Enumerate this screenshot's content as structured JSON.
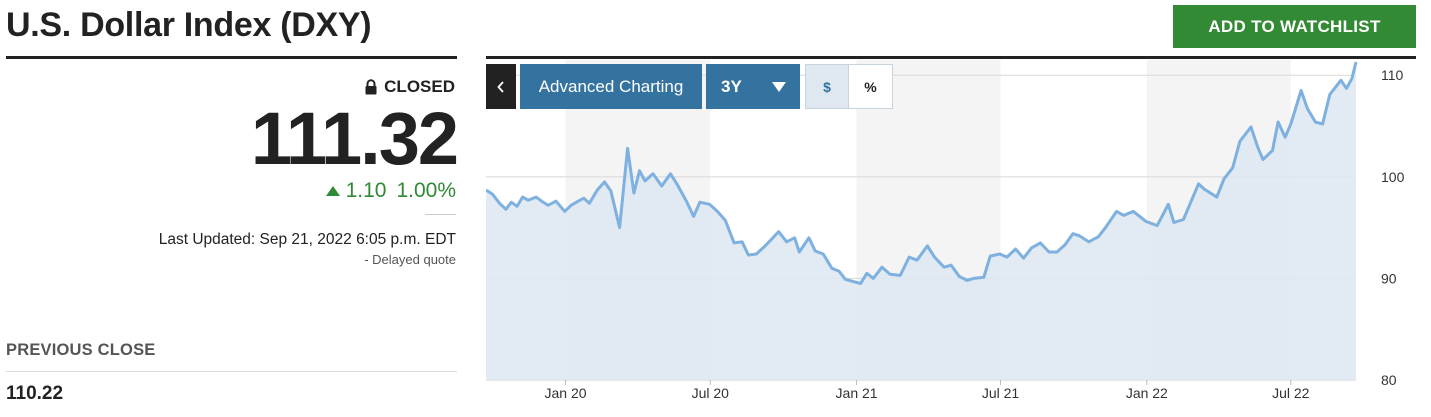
{
  "header": {
    "title": "U.S. Dollar Index (DXY)",
    "watchlist_label": "ADD TO WATCHLIST"
  },
  "quote": {
    "status": "CLOSED",
    "price": "111.32",
    "change": "1.10",
    "change_pct": "1.00%",
    "last_updated": "Last Updated: Sep 21, 2022 6:05 p.m. EDT",
    "delayed": "-  Delayed quote",
    "previous_close_label": "PREVIOUS CLOSE",
    "previous_close_value": "110.22"
  },
  "toolbar": {
    "back_label": "‹",
    "advanced_label": "Advanced Charting",
    "range_label": "3Y",
    "dollar_label": "$",
    "percent_label": "%"
  },
  "colors": {
    "accent_green": "#338a35",
    "toolbar_blue": "#34729f",
    "line": "#7eb0e0",
    "area": "#dde8f1"
  },
  "chart_data": {
    "type": "area",
    "x_start": "2019-09-23",
    "x_end": "2022-09-21",
    "ylim": [
      80,
      111.5
    ],
    "y_ticks": [
      "80",
      "90",
      "100",
      "110"
    ],
    "x_ticks": [
      {
        "label": "Jan 20",
        "date": "2020-01-01"
      },
      {
        "label": "Jul 20",
        "date": "2020-07-01"
      },
      {
        "label": "Jan 21",
        "date": "2021-01-01"
      },
      {
        "label": "Jul 21",
        "date": "2021-07-01"
      },
      {
        "label": "Jan 22",
        "date": "2022-01-01"
      },
      {
        "label": "Jul 22",
        "date": "2022-07-01"
      }
    ],
    "points": [
      [
        "2019-09-23",
        98.7
      ],
      [
        "2019-10-01",
        98.3
      ],
      [
        "2019-10-10",
        97.4
      ],
      [
        "2019-10-18",
        96.8
      ],
      [
        "2019-10-25",
        97.5
      ],
      [
        "2019-11-01",
        97.1
      ],
      [
        "2019-11-08",
        98.0
      ],
      [
        "2019-11-15",
        97.7
      ],
      [
        "2019-11-25",
        98.0
      ],
      [
        "2019-12-02",
        97.6
      ],
      [
        "2019-12-10",
        97.2
      ],
      [
        "2019-12-20",
        97.6
      ],
      [
        "2019-12-31",
        96.6
      ],
      [
        "2020-01-08",
        97.2
      ],
      [
        "2020-01-17",
        97.6
      ],
      [
        "2020-01-24",
        97.9
      ],
      [
        "2020-01-31",
        97.4
      ],
      [
        "2020-02-10",
        98.7
      ],
      [
        "2020-02-19",
        99.5
      ],
      [
        "2020-02-27",
        98.6
      ],
      [
        "2020-03-09",
        95.0
      ],
      [
        "2020-03-19",
        102.8
      ],
      [
        "2020-03-27",
        98.4
      ],
      [
        "2020-04-03",
        100.6
      ],
      [
        "2020-04-10",
        99.6
      ],
      [
        "2020-04-20",
        100.3
      ],
      [
        "2020-05-01",
        99.1
      ],
      [
        "2020-05-12",
        100.3
      ],
      [
        "2020-05-20",
        99.3
      ],
      [
        "2020-06-01",
        97.6
      ],
      [
        "2020-06-10",
        96.1
      ],
      [
        "2020-06-18",
        97.5
      ],
      [
        "2020-06-30",
        97.3
      ],
      [
        "2020-07-10",
        96.6
      ],
      [
        "2020-07-20",
        95.7
      ],
      [
        "2020-07-31",
        93.5
      ],
      [
        "2020-08-10",
        93.6
      ],
      [
        "2020-08-18",
        92.3
      ],
      [
        "2020-08-28",
        92.4
      ],
      [
        "2020-09-08",
        93.2
      ],
      [
        "2020-09-25",
        94.6
      ],
      [
        "2020-10-05",
        93.6
      ],
      [
        "2020-10-15",
        94.0
      ],
      [
        "2020-10-21",
        92.6
      ],
      [
        "2020-11-02",
        94.0
      ],
      [
        "2020-11-10",
        92.7
      ],
      [
        "2020-11-20",
        92.4
      ],
      [
        "2020-12-01",
        91.0
      ],
      [
        "2020-12-10",
        90.7
      ],
      [
        "2020-12-18",
        89.9
      ],
      [
        "2021-01-06",
        89.5
      ],
      [
        "2021-01-14",
        90.5
      ],
      [
        "2021-01-22",
        90.0
      ],
      [
        "2021-02-02",
        91.1
      ],
      [
        "2021-02-12",
        90.4
      ],
      [
        "2021-02-25",
        90.3
      ],
      [
        "2021-03-08",
        92.1
      ],
      [
        "2021-03-18",
        91.8
      ],
      [
        "2021-03-31",
        93.2
      ],
      [
        "2021-04-09",
        92.1
      ],
      [
        "2021-04-21",
        91.1
      ],
      [
        "2021-04-30",
        91.3
      ],
      [
        "2021-05-10",
        90.2
      ],
      [
        "2021-05-20",
        89.8
      ],
      [
        "2021-05-28",
        90.0
      ],
      [
        "2021-06-10",
        90.1
      ],
      [
        "2021-06-18",
        92.2
      ],
      [
        "2021-06-30",
        92.4
      ],
      [
        "2021-07-09",
        92.1
      ],
      [
        "2021-07-20",
        92.9
      ],
      [
        "2021-07-30",
        92.0
      ],
      [
        "2021-08-09",
        93.0
      ],
      [
        "2021-08-20",
        93.5
      ],
      [
        "2021-08-31",
        92.6
      ],
      [
        "2021-09-10",
        92.6
      ],
      [
        "2021-09-20",
        93.3
      ],
      [
        "2021-09-30",
        94.4
      ],
      [
        "2021-10-08",
        94.2
      ],
      [
        "2021-10-20",
        93.6
      ],
      [
        "2021-11-01",
        94.1
      ],
      [
        "2021-11-10",
        95.0
      ],
      [
        "2021-11-24",
        96.6
      ],
      [
        "2021-12-03",
        96.2
      ],
      [
        "2021-12-15",
        96.6
      ],
      [
        "2021-12-31",
        95.6
      ],
      [
        "2022-01-14",
        95.2
      ],
      [
        "2022-01-28",
        97.3
      ],
      [
        "2022-02-04",
        95.5
      ],
      [
        "2022-02-16",
        95.8
      ],
      [
        "2022-03-07",
        99.3
      ],
      [
        "2022-03-14",
        98.8
      ],
      [
        "2022-03-30",
        98.0
      ],
      [
        "2022-04-08",
        99.8
      ],
      [
        "2022-04-19",
        100.9
      ],
      [
        "2022-04-28",
        103.5
      ],
      [
        "2022-05-12",
        104.9
      ],
      [
        "2022-05-20",
        103.0
      ],
      [
        "2022-05-27",
        101.7
      ],
      [
        "2022-06-08",
        102.6
      ],
      [
        "2022-06-15",
        105.4
      ],
      [
        "2022-06-24",
        103.9
      ],
      [
        "2022-07-01",
        105.2
      ],
      [
        "2022-07-14",
        108.5
      ],
      [
        "2022-07-22",
        106.7
      ],
      [
        "2022-08-01",
        105.4
      ],
      [
        "2022-08-10",
        105.2
      ],
      [
        "2022-08-19",
        108.1
      ],
      [
        "2022-08-26",
        108.8
      ],
      [
        "2022-09-02",
        109.5
      ],
      [
        "2022-09-09",
        108.7
      ],
      [
        "2022-09-16",
        109.7
      ],
      [
        "2022-09-21",
        111.3
      ]
    ]
  }
}
